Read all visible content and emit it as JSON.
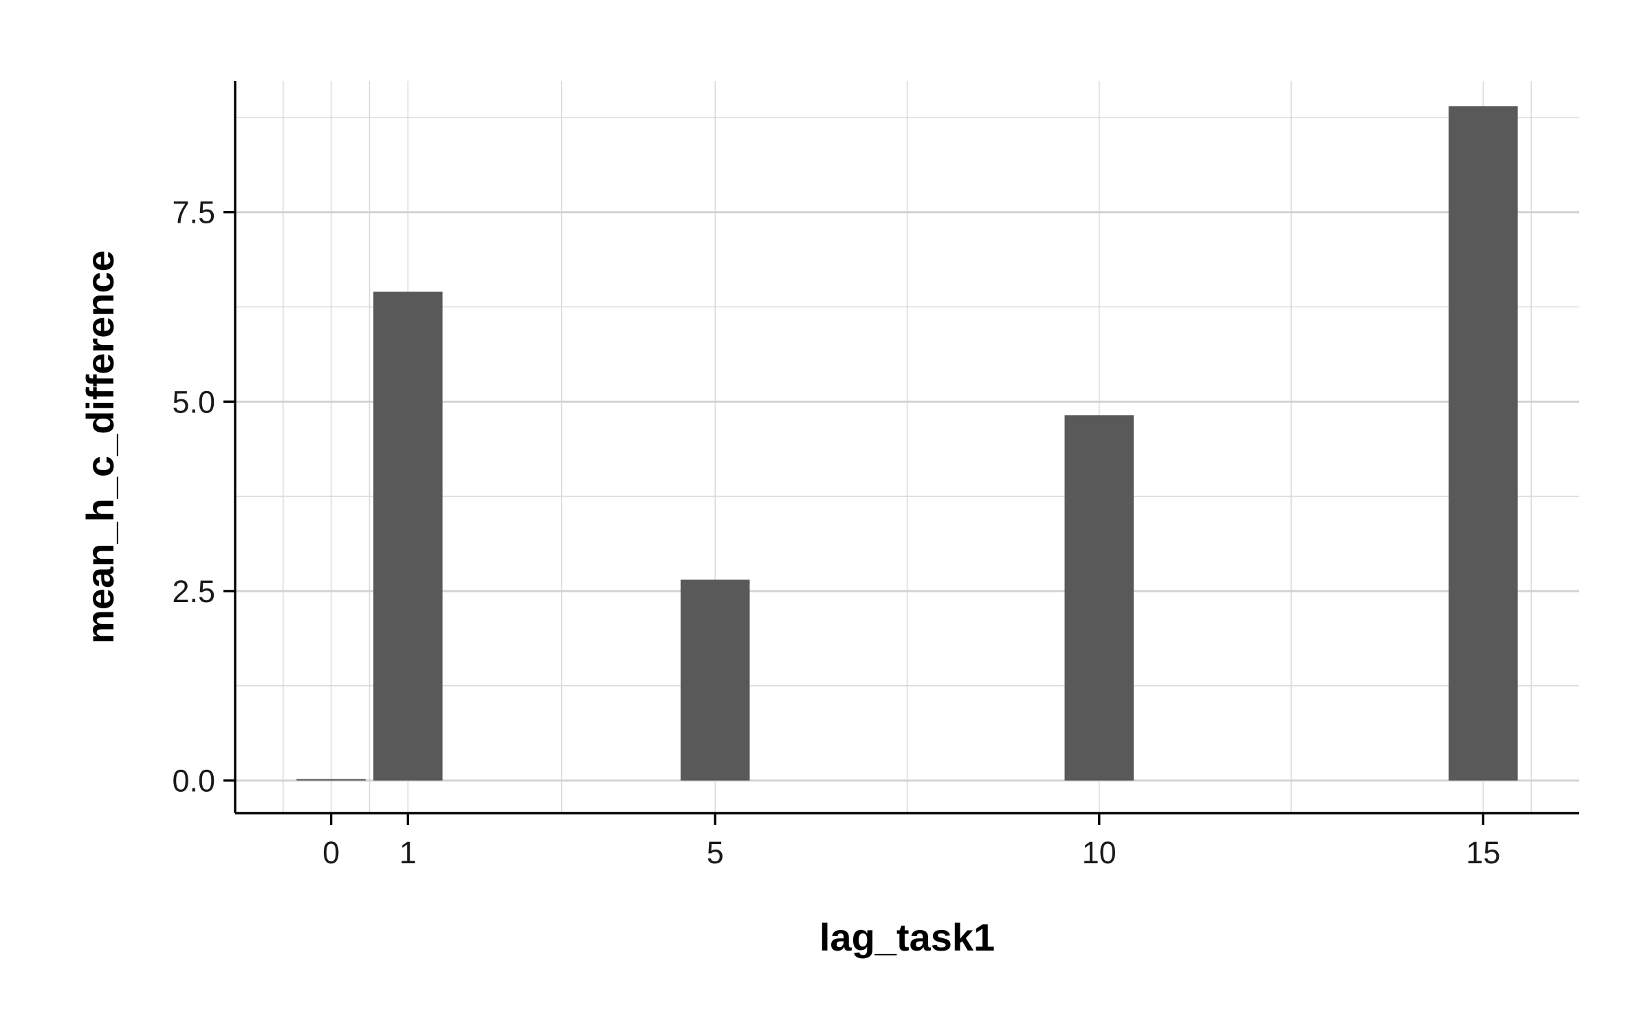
{
  "chart_data": {
    "type": "bar",
    "title": "",
    "xlabel": "lag_task1",
    "ylabel": "mean_h_c_difference",
    "x": [
      0,
      1,
      5,
      10,
      15
    ],
    "values": [
      0.02,
      6.45,
      2.65,
      4.82,
      8.9
    ],
    "bar_color": "#595959",
    "xlim": [
      -1.25,
      16.25
    ],
    "ylim": [
      -0.43,
      9.23
    ],
    "x_ticks": [
      0,
      1,
      5,
      10,
      15
    ],
    "x_tick_labels": [
      "0",
      "1",
      "5",
      "10",
      "15"
    ],
    "y_ticks": [
      0.0,
      2.5,
      5.0,
      7.5
    ],
    "y_tick_labels": [
      "0.0",
      "2.5",
      "5.0",
      "7.5"
    ],
    "grid": true,
    "legend": "none"
  }
}
